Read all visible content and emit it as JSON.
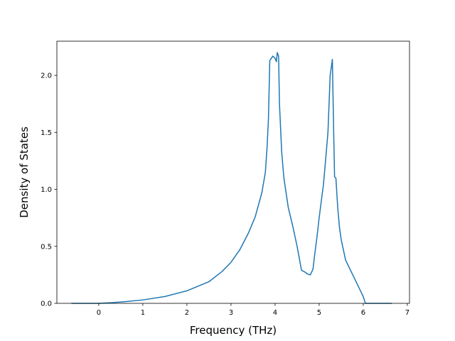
{
  "chart_data": {
    "type": "line",
    "title": "",
    "xlabel": "Frequency (THz)",
    "ylabel": "Density of States",
    "xlim": [
      -0.95,
      7.05
    ],
    "ylim": [
      0.0,
      2.3
    ],
    "xticks": [
      0,
      1,
      2,
      3,
      4,
      5,
      6,
      7
    ],
    "xtick_labels": [
      "0",
      "1",
      "2",
      "3",
      "4",
      "5",
      "6",
      "7"
    ],
    "yticks": [
      0.0,
      0.5,
      1.0,
      1.5,
      2.0
    ],
    "ytick_labels": [
      "0.0",
      "0.5",
      "1.0",
      "1.5",
      "2.0"
    ],
    "grid": false,
    "legend": "none",
    "series": [
      {
        "color": "#1f77b4",
        "x": [
          -0.62,
          0.0,
          0.3,
          0.6,
          1.0,
          1.5,
          2.0,
          2.5,
          2.8,
          3.0,
          3.2,
          3.4,
          3.55,
          3.7,
          3.78,
          3.82,
          3.85,
          3.88,
          3.95,
          4.0,
          4.03,
          4.05,
          4.08,
          4.1,
          4.15,
          4.2,
          4.3,
          4.4,
          4.5,
          4.6,
          4.7,
          4.72,
          4.8,
          4.86,
          4.9,
          4.95,
          5.0,
          5.1,
          5.2,
          5.25,
          5.3,
          5.33,
          5.35,
          5.38,
          5.42,
          5.46,
          5.5,
          5.55,
          5.6,
          5.7,
          5.8,
          5.9,
          6.0,
          6.05,
          6.1,
          6.3,
          6.65
        ],
        "y": [
          0.0,
          0.0,
          0.006,
          0.015,
          0.03,
          0.06,
          0.11,
          0.19,
          0.28,
          0.36,
          0.47,
          0.62,
          0.76,
          0.97,
          1.15,
          1.38,
          1.62,
          2.13,
          2.17,
          2.15,
          2.12,
          2.2,
          2.17,
          1.75,
          1.33,
          1.1,
          0.84,
          0.68,
          0.5,
          0.29,
          0.27,
          0.26,
          0.25,
          0.3,
          0.43,
          0.58,
          0.75,
          1.05,
          1.5,
          2.0,
          2.14,
          1.5,
          1.11,
          1.1,
          0.85,
          0.67,
          0.56,
          0.47,
          0.38,
          0.3,
          0.22,
          0.14,
          0.06,
          0.0,
          0.0,
          0.0,
          0.0
        ]
      }
    ]
  }
}
